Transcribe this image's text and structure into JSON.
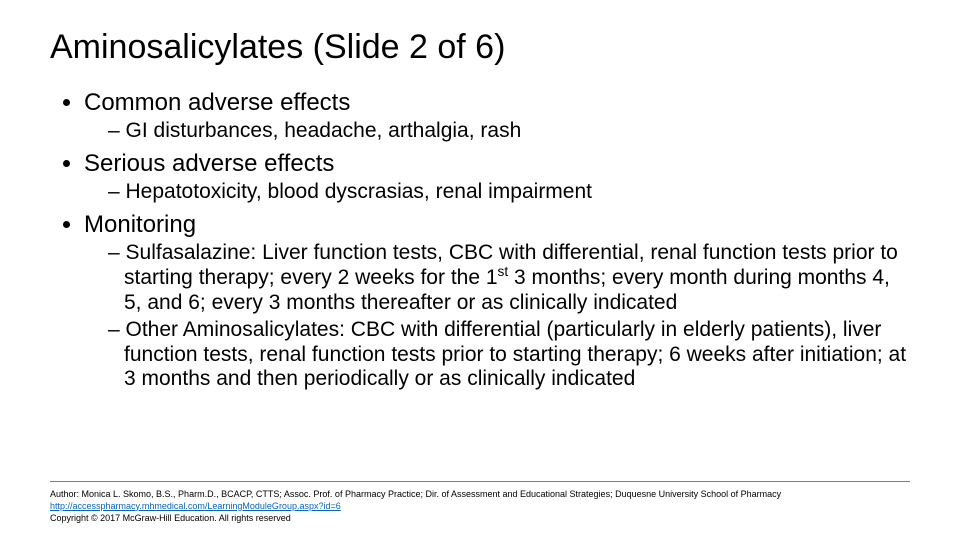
{
  "title": "Aminosalicylates (Slide 2 of 6)",
  "bullets": {
    "b1": {
      "label": "Common adverse effects",
      "s1": "GI disturbances, headache, arthalgia, rash"
    },
    "b2": {
      "label": "Serious adverse effects",
      "s1": "Hepatotoxicity, blood dyscrasias, renal impairment"
    },
    "b3": {
      "label": "Monitoring",
      "s1a": "Sulfasalazine:  Liver function tests, CBC with differential, renal function tests prior to starting therapy; every 2 weeks for the 1",
      "s1sup": "st",
      "s1b": " 3 months; every month during months 4, 5, and 6; every 3 months thereafter or as clinically indicated",
      "s2": "Other Aminosalicylates:  CBC with differential (particularly in elderly patients), liver function tests, renal function tests prior to starting therapy; 6 weeks after initiation; at 3 months and then periodically or as clinically indicated"
    }
  },
  "footer": {
    "author": "Author: Monica L. Skomo, B.S., Pharm.D., BCACP, CTTS; Assoc. Prof. of Pharmacy Practice; Dir. of Assessment and Educational Strategies; Duquesne University School of Pharmacy",
    "link": "http://accesspharmacy.mhmedical.com/LearningModuleGroup.aspx?id=6",
    "copyright": "Copyright © 2017 McGraw-Hill Education. All rights reserved"
  },
  "colors": {
    "background": "#ffffff",
    "text": "#000000",
    "link": "#0563c1",
    "divider": "#7f7f7f"
  },
  "typography": {
    "title_fontsize": 34,
    "bullet_fontsize": 24,
    "subbullet_fontsize": 21,
    "footer_fontsize": 9,
    "font_family": "Arial"
  }
}
